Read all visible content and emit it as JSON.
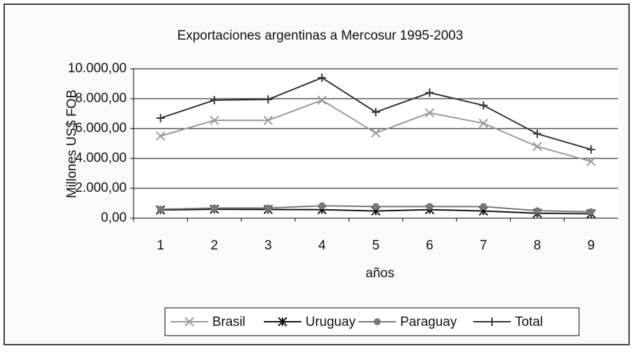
{
  "chart_data": {
    "type": "line",
    "title": "Exportaciones argentinas a Mercosur 1995-2003",
    "x_label": "años",
    "y_label": "Millones US$ FOB",
    "categories": [
      "1",
      "2",
      "3",
      "4",
      "5",
      "6",
      "7",
      "8",
      "9"
    ],
    "series": [
      {
        "name": "Brasil",
        "color": "#999999",
        "marker": "x",
        "values": [
          5500,
          6550,
          6550,
          7900,
          5700,
          7050,
          6350,
          4800,
          3800
        ]
      },
      {
        "name": "Uruguay",
        "color": "#111111",
        "marker": "star",
        "values": [
          550,
          600,
          580,
          570,
          480,
          570,
          480,
          330,
          300
        ]
      },
      {
        "name": "Paraguay",
        "color": "#777777",
        "marker": "circle",
        "values": [
          600,
          680,
          680,
          830,
          780,
          780,
          780,
          500,
          430
        ]
      },
      {
        "name": "Total",
        "color": "#333333",
        "marker": "plus",
        "values": [
          6700,
          7900,
          7950,
          9400,
          7100,
          8400,
          7550,
          5650,
          4600
        ]
      }
    ],
    "ylim": [
      0,
      10000
    ],
    "yticks": [
      {
        "value": 0,
        "label": "0,00"
      },
      {
        "value": 2000,
        "label": "2.000,00"
      },
      {
        "value": 4000,
        "label": "4.000,00"
      },
      {
        "value": 6000,
        "label": "6.000,00"
      },
      {
        "value": 8000,
        "label": "8.000,00"
      },
      {
        "value": 10000,
        "label": "10.000,00"
      }
    ],
    "grid": true,
    "legend": "bottom"
  }
}
